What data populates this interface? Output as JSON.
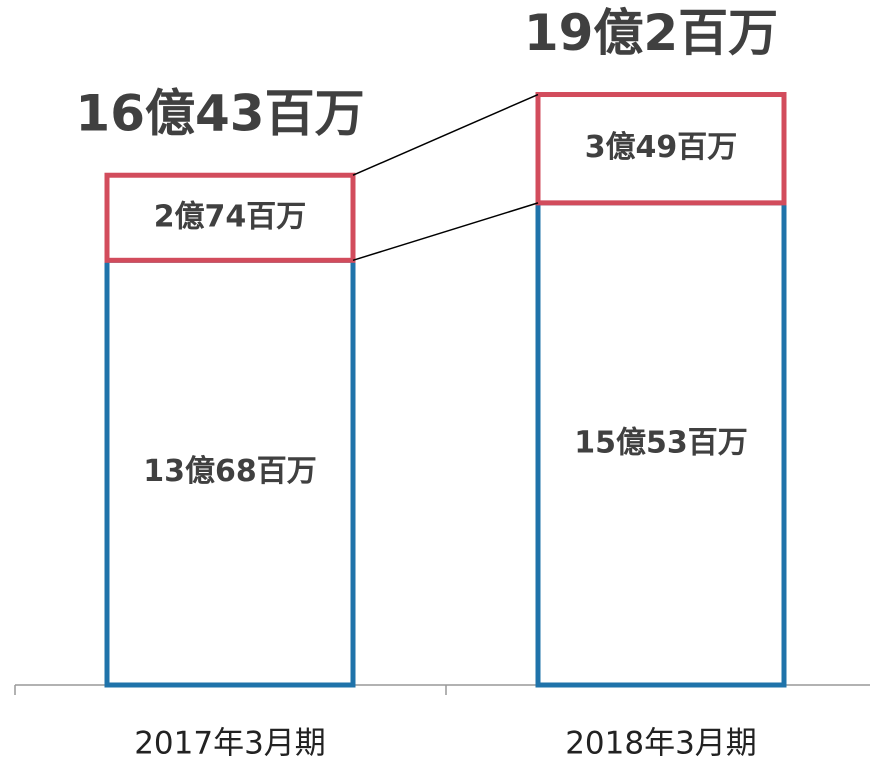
{
  "chart_data": {
    "type": "stacked_bar",
    "categories": [
      "2017年3月期",
      "2018年3月期"
    ],
    "series": [
      {
        "color": "#1f73aa",
        "values": [
          1368,
          1553
        ],
        "value_labels": [
          "13億68百万",
          "15億53百万"
        ]
      },
      {
        "color": "#d24c5c",
        "values": [
          274,
          349
        ],
        "value_labels": [
          "2億74百万",
          "3億49百万"
        ]
      }
    ],
    "totals": [
      1643,
      1902
    ],
    "total_labels": [
      "16億43百万",
      "19億2百万"
    ],
    "ylim": [
      0,
      2200
    ]
  }
}
